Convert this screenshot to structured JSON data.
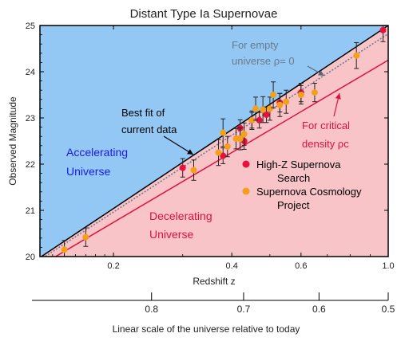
{
  "chart_data": {
    "type": "scatter",
    "title": "Distant Type Ia Supernovae",
    "xlabel": "Redshift z",
    "ylabel": "Observed Magnitude",
    "x_scale": "log",
    "xlim": [
      0.13,
      1.0
    ],
    "ylim": [
      20,
      25
    ],
    "x_ticks": [
      0.2,
      0.4,
      0.6,
      1.0
    ],
    "x_tick_labels": [
      "0.2",
      "0.4",
      "0.6",
      "1.0"
    ],
    "y_ticks": [
      20,
      21,
      22,
      23,
      24,
      25
    ],
    "y_tick_labels": [
      "20",
      "21",
      "22",
      "23",
      "24",
      "25"
    ],
    "secondary_axis": {
      "label": "Linear scale of the universe relative to today",
      "ticks": [
        {
          "z": 0.25,
          "label": "0.8"
        },
        {
          "z": 0.4286,
          "label": "0.7"
        },
        {
          "z": 0.6667,
          "label": "0.6"
        },
        {
          "z": 1.0,
          "label": "0.5"
        }
      ]
    },
    "lines": [
      {
        "name": "Best fit of current data",
        "color": "#000000",
        "dash": "solid",
        "points": [
          [
            0.13,
            19.98
          ],
          [
            1.0,
            25.0
          ]
        ]
      },
      {
        "name": "For empty universe ρ = 0",
        "color": "#6a7a8a",
        "dash": "dotted",
        "points": [
          [
            0.13,
            19.93
          ],
          [
            1.0,
            24.82
          ]
        ]
      },
      {
        "name": "For critical density ρc",
        "color": "#e0103c",
        "dash": "solid",
        "points": [
          [
            0.13,
            19.8
          ],
          [
            1.0,
            24.25
          ]
        ]
      }
    ],
    "series": [
      {
        "name": "High-Z Supernova Search",
        "color": "#e8103c",
        "points": [
          {
            "x": 0.3,
            "y": 21.92,
            "err": 0.2
          },
          {
            "x": 0.38,
            "y": 22.18,
            "err": 0.17
          },
          {
            "x": 0.42,
            "y": 22.78,
            "err": 0.18
          },
          {
            "x": 0.43,
            "y": 22.5,
            "err": 0.18
          },
          {
            "x": 0.45,
            "y": 22.95,
            "err": 0.17
          },
          {
            "x": 0.47,
            "y": 22.95,
            "err": 0.17
          },
          {
            "x": 0.49,
            "y": 23.07,
            "err": 0.17
          },
          {
            "x": 0.53,
            "y": 23.33,
            "err": 0.2
          },
          {
            "x": 0.6,
            "y": 23.55,
            "err": 0.2
          },
          {
            "x": 0.97,
            "y": 24.9,
            "err": 0.25
          }
        ]
      },
      {
        "name": "Supernova Cosmology Project",
        "color": "#f4a01c",
        "points": [
          {
            "x": 0.15,
            "y": 20.15,
            "err": 0.2
          },
          {
            "x": 0.17,
            "y": 20.42,
            "err": 0.2
          },
          {
            "x": 0.32,
            "y": 21.87,
            "err": 0.22
          },
          {
            "x": 0.37,
            "y": 22.25,
            "err": 0.28
          },
          {
            "x": 0.38,
            "y": 22.68,
            "err": 0.3
          },
          {
            "x": 0.39,
            "y": 22.38,
            "err": 0.22
          },
          {
            "x": 0.41,
            "y": 22.55,
            "err": 0.22
          },
          {
            "x": 0.42,
            "y": 22.55,
            "err": 0.24
          },
          {
            "x": 0.43,
            "y": 22.65,
            "err": 0.24
          },
          {
            "x": 0.45,
            "y": 22.95,
            "err": 0.2
          },
          {
            "x": 0.46,
            "y": 23.2,
            "err": 0.25
          },
          {
            "x": 0.48,
            "y": 23.18,
            "err": 0.28
          },
          {
            "x": 0.5,
            "y": 23.2,
            "err": 0.25
          },
          {
            "x": 0.51,
            "y": 23.5,
            "err": 0.28
          },
          {
            "x": 0.53,
            "y": 23.28,
            "err": 0.25
          },
          {
            "x": 0.55,
            "y": 23.35,
            "err": 0.25
          },
          {
            "x": 0.6,
            "y": 23.5,
            "err": 0.2
          },
          {
            "x": 0.65,
            "y": 23.55,
            "err": 0.2
          },
          {
            "x": 0.83,
            "y": 24.35,
            "err": 0.28
          }
        ]
      }
    ],
    "annotations": {
      "best_fit": [
        "Best fit of",
        "current data"
      ],
      "empty_universe": [
        "For empty",
        "universe ρ= 0"
      ],
      "critical": [
        "For critical",
        "density ρc"
      ],
      "accelerating": [
        "Accelerating",
        "Universe"
      ],
      "decelerating": [
        "Decelerating",
        "Universe"
      ]
    },
    "legend": {
      "placement": "lower-right",
      "entries": [
        {
          "lines": [
            "High-Z Supernova",
            "Search"
          ],
          "color": "#e8103c"
        },
        {
          "lines": [
            "Supernova Cosmology",
            "Project"
          ],
          "color": "#f4a01c"
        }
      ]
    },
    "region_colors": {
      "accelerating": "#93c8f4",
      "decelerating": "#f8c4c8"
    },
    "text_colors": {
      "accelerating": "#1a1ae6",
      "critical": "#e0103c",
      "empty": "#6a7a8a"
    },
    "grid": false
  }
}
